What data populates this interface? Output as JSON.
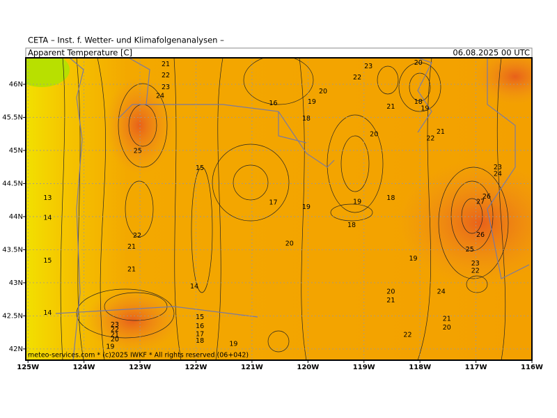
{
  "header": "CETA – Inst. f. Wetter- und Klimafolgenanalysen –",
  "map": {
    "title": "Apparent Temperature [C]",
    "valid": "06.08.2025 00 UTC",
    "credit": "meteo-services.com * (c)2025 IWKF * All rights reserved (06+042)",
    "lonlim": [
      -125.04,
      -116
    ],
    "latlim": [
      41.83,
      46.4
    ],
    "lonticks": [
      {
        "value": -125,
        "label": "125W"
      },
      {
        "value": -124,
        "label": "124W"
      },
      {
        "value": -123,
        "label": "123W"
      },
      {
        "value": -122,
        "label": "122W"
      },
      {
        "value": -121,
        "label": "121W"
      },
      {
        "value": -120,
        "label": "120W"
      },
      {
        "value": -119,
        "label": "119W"
      },
      {
        "value": -118,
        "label": "118W"
      },
      {
        "value": -117,
        "label": "117W"
      },
      {
        "value": -116,
        "label": "116W"
      }
    ],
    "latticks": [
      {
        "value": 46,
        "label": "46N"
      },
      {
        "value": 45.5,
        "label": "45.5N"
      },
      {
        "value": 45,
        "label": "45N"
      },
      {
        "value": 44.5,
        "label": "44.5N"
      },
      {
        "value": 44,
        "label": "44N"
      },
      {
        "value": 43.5,
        "label": "43.5N"
      },
      {
        "value": 43,
        "label": "43N"
      },
      {
        "value": 42.5,
        "label": "42.5N"
      },
      {
        "value": 42,
        "label": "42N"
      }
    ],
    "contour_labels": [
      {
        "value": 21,
        "lon": -122.54,
        "lat": 46.3
      },
      {
        "value": 22,
        "lon": -122.54,
        "lat": 46.13
      },
      {
        "value": 23,
        "lon": -122.54,
        "lat": 45.95
      },
      {
        "value": 24,
        "lon": -122.64,
        "lat": 45.82
      },
      {
        "value": 25,
        "lon": -123.04,
        "lat": 44.99
      },
      {
        "value": 13,
        "lon": -124.65,
        "lat": 44.28
      },
      {
        "value": 14,
        "lon": -124.65,
        "lat": 43.98
      },
      {
        "value": 15,
        "lon": -124.65,
        "lat": 43.33
      },
      {
        "value": 14,
        "lon": -124.65,
        "lat": 42.54
      },
      {
        "value": 22,
        "lon": -123.05,
        "lat": 43.71
      },
      {
        "value": 21,
        "lon": -123.15,
        "lat": 43.54
      },
      {
        "value": 21,
        "lon": -123.15,
        "lat": 43.2
      },
      {
        "value": 23,
        "lon": -123.45,
        "lat": 42.36
      },
      {
        "value": 22,
        "lon": -123.45,
        "lat": 42.29
      },
      {
        "value": 21,
        "lon": -123.45,
        "lat": 42.21
      },
      {
        "value": 20,
        "lon": -123.45,
        "lat": 42.14
      },
      {
        "value": 19,
        "lon": -123.53,
        "lat": 42.03
      },
      {
        "value": 15,
        "lon": -121.93,
        "lat": 44.73
      },
      {
        "value": 14,
        "lon": -122.03,
        "lat": 42.94
      },
      {
        "value": 15,
        "lon": -121.93,
        "lat": 42.48
      },
      {
        "value": 16,
        "lon": -121.93,
        "lat": 42.34
      },
      {
        "value": 17,
        "lon": -121.93,
        "lat": 42.22
      },
      {
        "value": 18,
        "lon": -121.93,
        "lat": 42.12
      },
      {
        "value": 19,
        "lon": -121.33,
        "lat": 42.07
      },
      {
        "value": 16,
        "lon": -120.62,
        "lat": 45.71
      },
      {
        "value": 19,
        "lon": -119.93,
        "lat": 45.73
      },
      {
        "value": 20,
        "lon": -119.73,
        "lat": 45.89
      },
      {
        "value": 18,
        "lon": -120.03,
        "lat": 45.48
      },
      {
        "value": 23,
        "lon": -118.92,
        "lat": 46.27
      },
      {
        "value": 22,
        "lon": -119.12,
        "lat": 46.1
      },
      {
        "value": 20,
        "lon": -118.03,
        "lat": 46.32
      },
      {
        "value": 21,
        "lon": -118.52,
        "lat": 45.66
      },
      {
        "value": 18,
        "lon": -118.03,
        "lat": 45.73
      },
      {
        "value": 19,
        "lon": -117.91,
        "lat": 45.63
      },
      {
        "value": 20,
        "lon": -118.82,
        "lat": 45.24
      },
      {
        "value": 21,
        "lon": -117.63,
        "lat": 45.28
      },
      {
        "value": 22,
        "lon": -117.81,
        "lat": 45.18
      },
      {
        "value": 17,
        "lon": -120.62,
        "lat": 44.21
      },
      {
        "value": 19,
        "lon": -120.03,
        "lat": 44.14
      },
      {
        "value": 19,
        "lon": -119.12,
        "lat": 44.22
      },
      {
        "value": 18,
        "lon": -118.52,
        "lat": 44.28
      },
      {
        "value": 18,
        "lon": -119.22,
        "lat": 43.87
      },
      {
        "value": 20,
        "lon": -120.33,
        "lat": 43.59
      },
      {
        "value": 19,
        "lon": -118.12,
        "lat": 43.36
      },
      {
        "value": 20,
        "lon": -118.52,
        "lat": 42.86
      },
      {
        "value": 21,
        "lon": -118.52,
        "lat": 42.73
      },
      {
        "value": 24,
        "lon": -117.62,
        "lat": 42.86
      },
      {
        "value": 23,
        "lon": -116.61,
        "lat": 44.74
      },
      {
        "value": 24,
        "lon": -116.61,
        "lat": 44.64
      },
      {
        "value": 26,
        "lon": -116.81,
        "lat": 44.3
      },
      {
        "value": 27,
        "lon": -116.92,
        "lat": 44.22
      },
      {
        "value": 26,
        "lon": -116.92,
        "lat": 43.72
      },
      {
        "value": 25,
        "lon": -117.11,
        "lat": 43.5
      },
      {
        "value": 23,
        "lon": -117.01,
        "lat": 43.29
      },
      {
        "value": 22,
        "lon": -117.01,
        "lat": 43.18
      },
      {
        "value": 21,
        "lon": -117.52,
        "lat": 42.45
      },
      {
        "value": 20,
        "lon": -117.52,
        "lat": 42.32
      },
      {
        "value": 22,
        "lon": -118.22,
        "lat": 42.21
      }
    ]
  }
}
